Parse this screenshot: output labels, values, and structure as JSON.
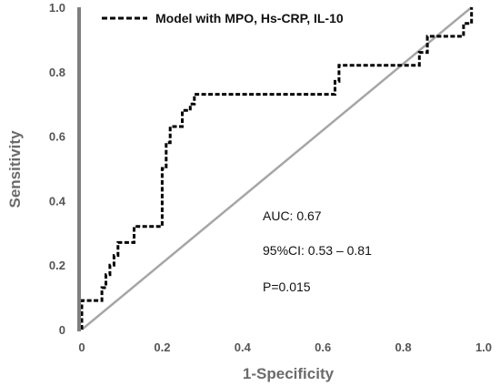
{
  "chart_data": {
    "type": "line",
    "xlabel": "1-Specificity",
    "ylabel": "Sensitivity",
    "xlim": [
      0,
      1.0
    ],
    "ylim": [
      0,
      1.0
    ],
    "xticks": [
      "0",
      "0.2",
      "0.4",
      "0.6",
      "0.8",
      "1.0"
    ],
    "yticks": [
      "0",
      "0.2",
      "0.4",
      "0.6",
      "0.8",
      "1.0"
    ],
    "grid": false,
    "legend_position": "top-left",
    "series": [
      {
        "name": "Model with MPO, Hs-CRP, IL-10",
        "style": "dashed",
        "color": "#000000",
        "x": [
          0,
          0,
          0.05,
          0.05,
          0.06,
          0.06,
          0.07,
          0.07,
          0.08,
          0.08,
          0.09,
          0.09,
          0.13,
          0.13,
          0.2,
          0.2,
          0.21,
          0.21,
          0.22,
          0.22,
          0.25,
          0.25,
          0.27,
          0.27,
          0.28,
          0.28,
          0.63,
          0.63,
          0.64,
          0.64,
          0.84,
          0.84,
          0.86,
          0.86,
          0.95,
          0.95,
          0.97,
          0.97
        ],
        "y": [
          0,
          0.09,
          0.09,
          0.13,
          0.13,
          0.17,
          0.17,
          0.2,
          0.2,
          0.23,
          0.23,
          0.27,
          0.27,
          0.32,
          0.32,
          0.5,
          0.5,
          0.58,
          0.58,
          0.63,
          0.63,
          0.68,
          0.68,
          0.7,
          0.7,
          0.73,
          0.73,
          0.77,
          0.77,
          0.82,
          0.82,
          0.86,
          0.86,
          0.91,
          0.91,
          0.95,
          0.95,
          1.0
        ]
      },
      {
        "name": "",
        "style": "solid",
        "color": "#a6a6a6",
        "x": [
          0,
          0.97
        ],
        "y": [
          0,
          1.0
        ]
      }
    ],
    "annotations": [
      "AUC: 0.67",
      "95%CI: 0.53 – 0.81",
      "P=0.015"
    ]
  }
}
